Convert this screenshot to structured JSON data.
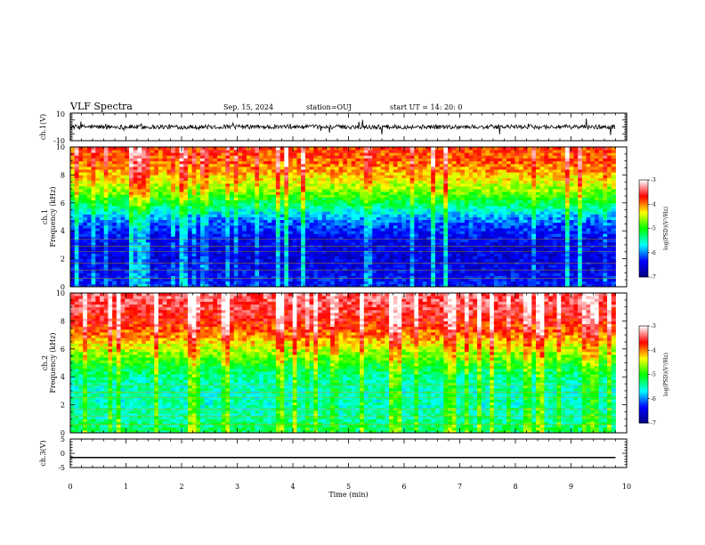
{
  "header": {
    "title": "VLF Spectra",
    "date": "Sep. 15, 2024",
    "station": "station=OUJ",
    "start_ut": "start  UT =   14: 20: 0"
  },
  "chart_data": [
    {
      "type": "line",
      "panel": "ch1-waveform",
      "ylabel": "ch.1(V)",
      "ylim": [
        -10,
        10
      ],
      "ytick_labels": [
        "10",
        "-10"
      ],
      "series": [
        {
          "x_range": [
            0,
            9.8
          ],
          "description_value": "noisy waveform centred near 0 V, amplitude about ±2 V with spikes"
        }
      ]
    },
    {
      "type": "heatmap",
      "panel": "ch1-spectrogram",
      "ylabel_lines": [
        "ch.1",
        "Frequency (kHz)"
      ],
      "ylim": [
        0,
        10
      ],
      "ytick_labels": [
        "10",
        "8",
        "6",
        "4",
        "2",
        "0"
      ],
      "x_range": [
        0,
        9.8
      ],
      "colorbar": {
        "label": "log(PSD)(V²/Hz)",
        "range": [
          -7,
          -3
        ],
        "tick_labels": [
          "-3",
          "-4",
          "-5",
          "-6",
          "-7"
        ]
      },
      "profile": {
        "freq_khz": [
          0,
          1,
          2,
          3,
          4,
          5,
          6,
          7,
          8,
          9,
          10
        ],
        "log_psd": [
          -6.3,
          -6.4,
          -6.5,
          -6.5,
          -6.3,
          -5.9,
          -5.2,
          -4.6,
          -4.2,
          -3.9,
          -3.8
        ]
      }
    },
    {
      "type": "heatmap",
      "panel": "ch2-spectrogram",
      "ylabel_lines": [
        "ch.2",
        "Frequency (kHz)"
      ],
      "ylim": [
        0,
        10
      ],
      "ytick_labels": [
        "10",
        "8",
        "6",
        "4",
        "2",
        "0"
      ],
      "x_range": [
        0,
        9.8
      ],
      "colorbar": {
        "label": "log(PSD)(V²/Hz)",
        "range": [
          -7,
          -3
        ],
        "tick_labels": [
          "-3",
          "-4",
          "-5",
          "-6",
          "-7"
        ]
      },
      "profile": {
        "freq_khz": [
          0,
          1,
          2,
          3,
          4,
          5,
          6,
          7,
          8,
          9,
          10
        ],
        "log_psd": [
          -5.2,
          -5.4,
          -5.5,
          -5.5,
          -5.4,
          -5.0,
          -4.5,
          -4.0,
          -3.7,
          -3.5,
          -3.4
        ]
      }
    },
    {
      "type": "line",
      "panel": "ch3-waveform",
      "ylabel": "ch.3(V)",
      "ylim": [
        -5,
        5
      ],
      "ytick_labels": [
        "5",
        "0",
        "-5"
      ],
      "series": [
        {
          "x": [
            0,
            9.8
          ],
          "y": [
            -1.5,
            -1.5
          ]
        }
      ]
    }
  ],
  "xaxis": {
    "label": "Time (min)",
    "range": [
      0,
      10
    ],
    "tick_labels": [
      "0",
      "1",
      "2",
      "3",
      "4",
      "5",
      "6",
      "7",
      "8",
      "9",
      "10"
    ]
  },
  "colors": {
    "colormap": [
      "#000080",
      "#0000ff",
      "#00ffff",
      "#00ff00",
      "#ffff00",
      "#ff0000",
      "#ffffff"
    ]
  }
}
